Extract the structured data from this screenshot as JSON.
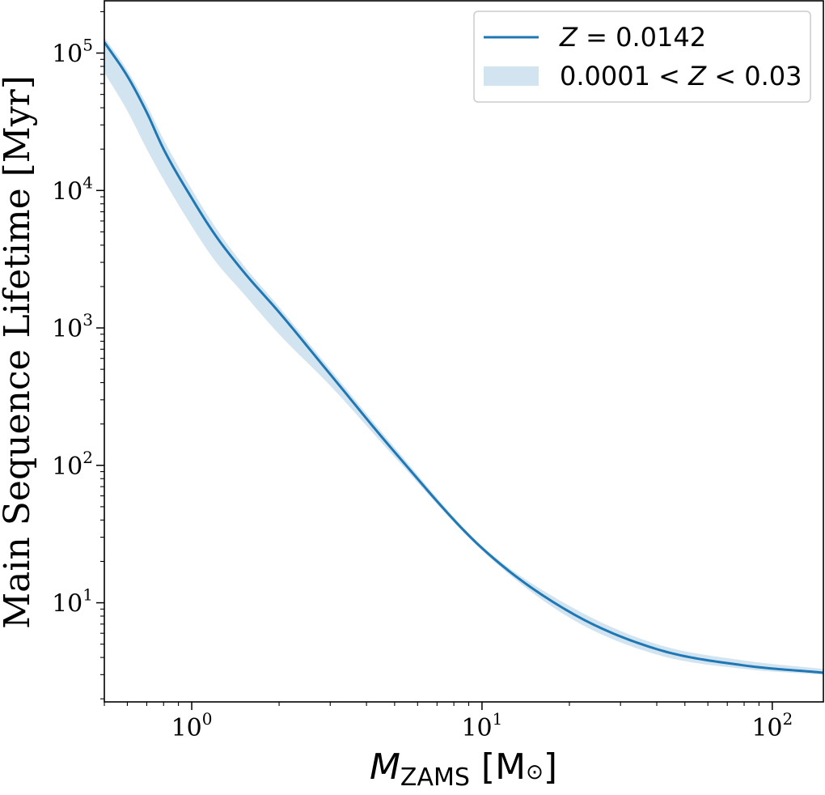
{
  "chart_data": {
    "type": "line",
    "xscale": "log",
    "yscale": "log",
    "xlim": [
      0.5,
      150
    ],
    "ylim": [
      1.9,
      240000
    ],
    "xlabel": {
      "main": "M",
      "sub": "ZAMS",
      "unit_open": " [M",
      "unit_close": "]",
      "unit_symbol": "⊙"
    },
    "ylabel": "Main Sequence Lifetime [Myr]",
    "x_ticks": [
      {
        "value": 1,
        "base": "10",
        "exp": "0"
      },
      {
        "value": 10,
        "base": "10",
        "exp": "1"
      },
      {
        "value": 100,
        "base": "10",
        "exp": "2"
      }
    ],
    "y_ticks": [
      {
        "value": 10,
        "base": "10",
        "exp": "1"
      },
      {
        "value": 100,
        "base": "10",
        "exp": "2"
      },
      {
        "value": 1000,
        "base": "10",
        "exp": "3"
      },
      {
        "value": 10000,
        "base": "10",
        "exp": "4"
      },
      {
        "value": 100000,
        "base": "10",
        "exp": "5"
      }
    ],
    "grid": false,
    "legend_position": "top-right",
    "series": [
      {
        "name": "Z = 0.0142",
        "name_parts": {
          "var": "Z",
          "rest": " = 0.0142"
        },
        "kind": "line",
        "color": "#1f77b4",
        "x": [
          0.5,
          0.6,
          0.7,
          0.8,
          1.0,
          1.2,
          1.5,
          2.0,
          3.0,
          5.0,
          10,
          20,
          40,
          80,
          150
        ],
        "y": [
          120000,
          68000,
          37000,
          20000,
          8800,
          4800,
          2600,
          1300,
          460,
          125,
          25,
          8.6,
          4.6,
          3.5,
          3.1
        ]
      },
      {
        "name": "0.0001 < Z < 0.03",
        "name_parts": {
          "lead": "0.0001 < ",
          "var": "Z",
          "rest": " < 0.03"
        },
        "kind": "band",
        "color": "#1f77b4",
        "alpha": 0.2,
        "x": [
          0.5,
          0.6,
          0.7,
          0.8,
          1.0,
          1.2,
          1.5,
          2.0,
          3.0,
          5.0,
          10,
          20,
          40,
          80,
          150
        ],
        "y_low": [
          72000,
          38000,
          20000,
          12000,
          5500,
          3100,
          1800,
          900,
          380,
          115,
          24,
          7.8,
          4.2,
          3.3,
          3.0
        ],
        "y_high": [
          130000,
          75000,
          42000,
          23500,
          10200,
          5500,
          2900,
          1420,
          500,
          135,
          26,
          9.5,
          5.0,
          3.8,
          3.3
        ]
      }
    ]
  }
}
